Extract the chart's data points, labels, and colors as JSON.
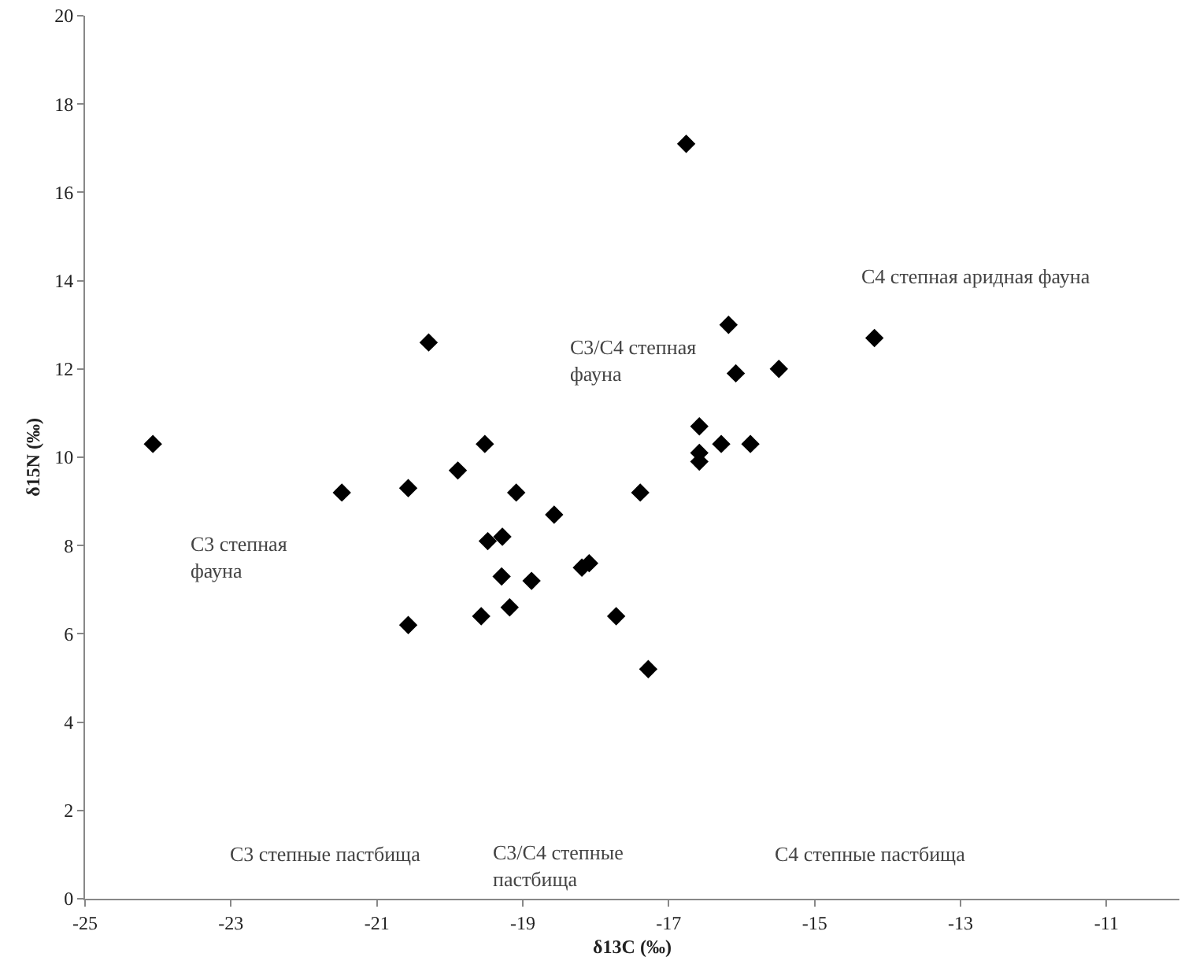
{
  "chart_data": {
    "type": "scatter",
    "xlabel": "δ13C (‰)",
    "ylabel": "δ15N (‰)",
    "xlim": [
      -25,
      -10
    ],
    "xticks": [
      -25,
      -23,
      -21,
      -19,
      -17,
      -15,
      -13,
      -11
    ],
    "ylim": [
      0,
      20
    ],
    "yticks": [
      0,
      2,
      4,
      6,
      8,
      10,
      12,
      14,
      16,
      18,
      20
    ],
    "grid": false,
    "marker": "diamond",
    "series": [
      {
        "color": "#000000",
        "x": [
          -24.07,
          -21.48,
          -20.57,
          -20.29,
          -19.89,
          -19.52,
          -19.09,
          -18.57,
          -19.48,
          -19.28,
          -19.29,
          -18.88,
          -19.18,
          -19.57,
          -20.57,
          -18.19,
          -18.09,
          -17.72,
          -16.76,
          -16.18,
          -14.18,
          -16.08,
          -15.49,
          -16.58,
          -16.28,
          -15.88,
          -16.58,
          -16.58,
          -17.39,
          -17.28
        ],
        "values": [
          10.3,
          9.2,
          9.3,
          12.6,
          9.7,
          10.3,
          9.2,
          8.7,
          8.1,
          8.2,
          7.3,
          7.2,
          6.6,
          6.4,
          6.2,
          7.5,
          7.6,
          6.4,
          17.1,
          13.0,
          12.7,
          11.9,
          12.0,
          10.7,
          10.3,
          10.3,
          10.1,
          9.9,
          9.2,
          5.2
        ]
      }
    ],
    "annotations": [
      "C3 степная\nфауна",
      "C3/C4 степная\nфауна",
      "C4 степная аридная фауна",
      "C3 степные пастбища",
      "C3/C4 степные\nпастбища",
      "C4 степные пастбища"
    ]
  }
}
